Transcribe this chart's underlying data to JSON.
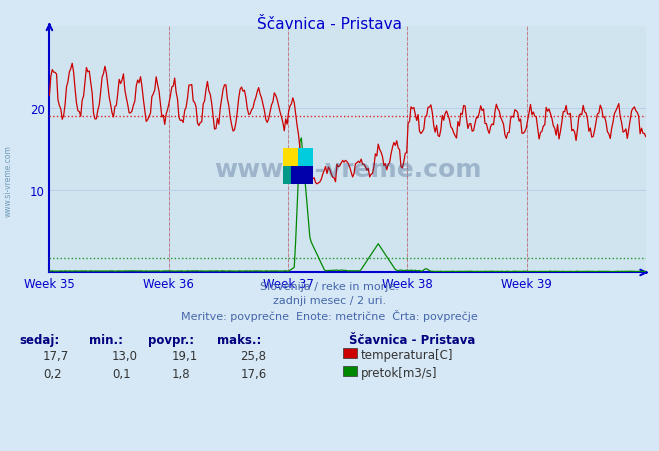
{
  "title": "Ščavnica - Pristava",
  "bg_color": "#d6e8f5",
  "plot_bg_color": "#d0e4f0",
  "grid_color": "#b8d0e8",
  "axis_color": "#0000cc",
  "text_color": "#0000cc",
  "week_labels": [
    "Week 35",
    "Week 36",
    "Week 37",
    "Week 38",
    "Week 39"
  ],
  "ylim": [
    0,
    30
  ],
  "yticks": [
    10,
    20
  ],
  "temp_avg": 19.1,
  "flow_avg": 1.8,
  "temp_color": "#cc0000",
  "flow_color": "#008800",
  "avg_temp_color": "#dd0000",
  "avg_flow_color": "#008800",
  "watermark_text": "www.si-vreme.com",
  "footer_line1": "Slovenija / reke in morje.",
  "footer_line2": "zadnji mesec / 2 uri.",
  "footer_line3": "Meritve: povprečne  Enote: metrične  Črta: povprečje",
  "legend_title": "Ščavnica - Pristava",
  "stats_headers": [
    "sedaj:",
    "min.:",
    "povpr.:",
    "maks.:"
  ],
  "temp_stats": [
    "17,7",
    "13,0",
    "19,1",
    "25,8"
  ],
  "flow_stats": [
    "0,2",
    "0,1",
    "1,8",
    "17,6"
  ],
  "temp_label": "temperatura[C]",
  "flow_label": "pretok[m3/s]",
  "left_watermark": "www.si-vreme.com"
}
